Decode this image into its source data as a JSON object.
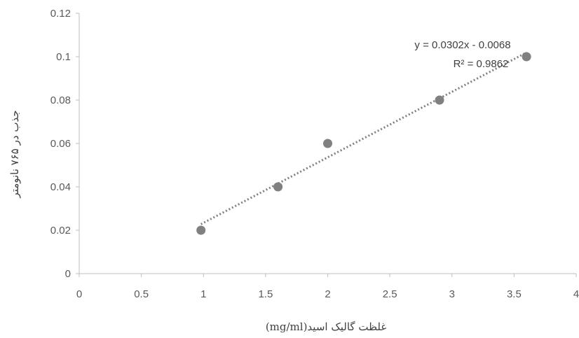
{
  "chart_data": {
    "type": "scatter",
    "title": "",
    "xlabel": "غلظت گالیک اسید(mg/ml)",
    "ylabel": "جذب در ۷۶۵ نانومتر",
    "xlim": [
      0,
      4
    ],
    "ylim": [
      0,
      0.12
    ],
    "x_ticks": [
      "0",
      "0.5",
      "1",
      "1.5",
      "2",
      "2.5",
      "3",
      "3.5",
      "4"
    ],
    "y_ticks": [
      "0",
      "0.02",
      "0.04",
      "0.06",
      "0.08",
      "0.1",
      "0.12"
    ],
    "grid": false,
    "legend": "none",
    "series": [
      {
        "x": [
          0.98,
          1.6,
          2.0,
          2.9,
          3.6
        ],
        "y": [
          0.02,
          0.04,
          0.06,
          0.08,
          0.1
        ]
      }
    ],
    "trendline": {
      "kind": "linear",
      "slope": 0.0302,
      "intercept": -0.0068,
      "style": "dotted",
      "equation_label": "y = 0.0302x - 0.0068",
      "r2_label": "R² = 0.9862"
    },
    "colors": {
      "marker": "#808080",
      "trendline": "#808080",
      "axis": "#bfbfbf",
      "text": "#595959"
    }
  }
}
